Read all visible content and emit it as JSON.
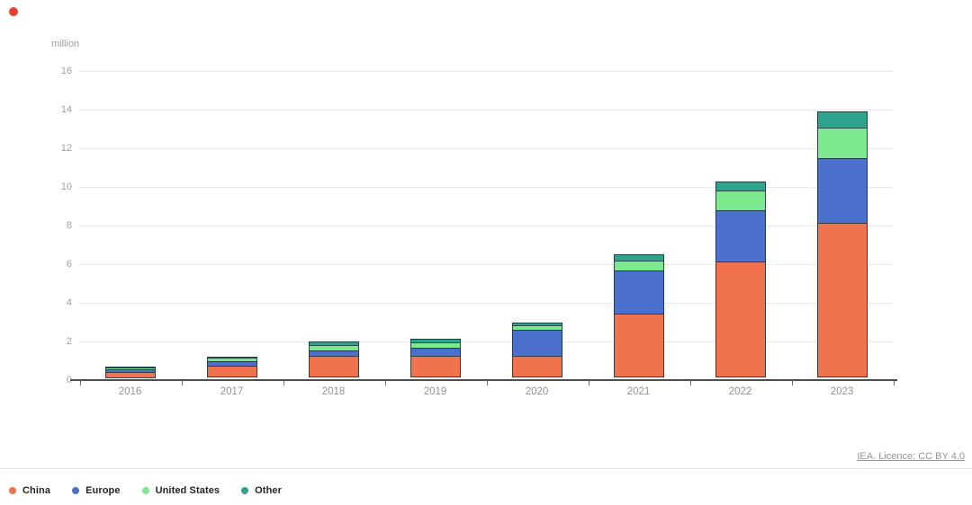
{
  "page": {
    "brand_dot_color": "#e8402a"
  },
  "chart_data": {
    "type": "bar",
    "stacked": true,
    "unit_label": "million",
    "categories": [
      "2016",
      "2017",
      "2018",
      "2019",
      "2020",
      "2021",
      "2022",
      "2023"
    ],
    "series": [
      {
        "name": "China",
        "color": "#f1734d",
        "values": [
          0.3,
          0.6,
          1.1,
          1.1,
          1.1,
          3.3,
          6.0,
          8.0
        ]
      },
      {
        "name": "Europe",
        "color": "#4c70ce",
        "values": [
          0.2,
          0.3,
          0.35,
          0.5,
          1.4,
          2.3,
          2.7,
          3.4
        ]
      },
      {
        "name": "United States",
        "color": "#7de98f",
        "values": [
          0.15,
          0.2,
          0.3,
          0.3,
          0.3,
          0.55,
          1.05,
          1.6
        ]
      },
      {
        "name": "Other",
        "color": "#2ea38d",
        "values": [
          0.05,
          0.1,
          0.25,
          0.25,
          0.2,
          0.35,
          0.55,
          0.9
        ]
      }
    ],
    "totals": [
      0.7,
      1.2,
      2.0,
      2.15,
      3.0,
      6.5,
      10.3,
      13.9
    ],
    "ylim": [
      0,
      16
    ],
    "yticks": [
      "16",
      "14",
      "12",
      "10",
      "8",
      "6",
      "4",
      "2",
      "0"
    ],
    "grid": true,
    "legend_position": "bottom-left"
  },
  "colors": {
    "axis_text": "#9aa0a6",
    "xtick_text": "#8f9296",
    "gridline": "#e9e9e9",
    "baseline": "#4e4e4e",
    "tick": "#6f6f6f",
    "divider": "#e7e7e7",
    "attribution_text": "#909498",
    "legend_text": "#1f2226"
  },
  "footer": {
    "attribution": "IEA. Licence: CC BY 4.0"
  }
}
